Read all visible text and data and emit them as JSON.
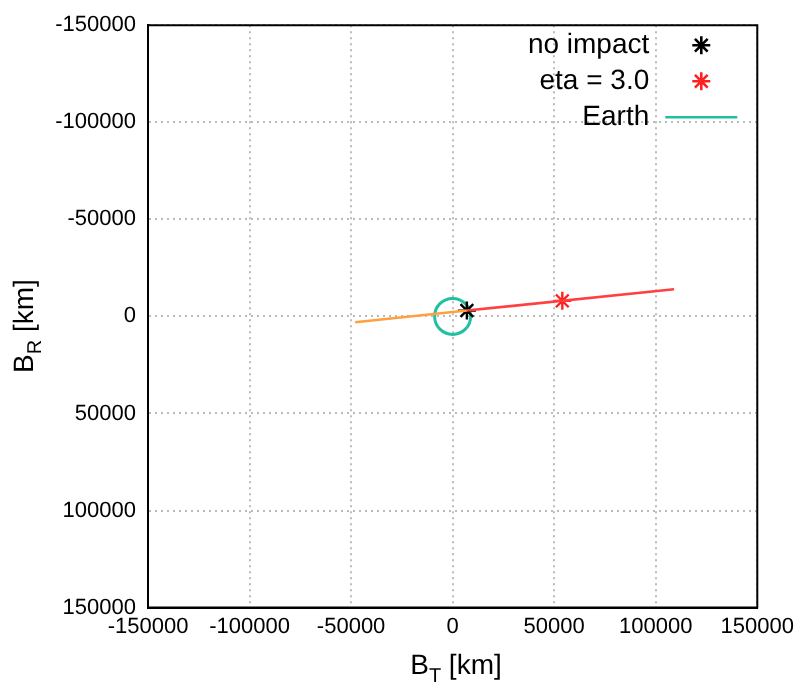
{
  "chart_data": {
    "type": "scatter",
    "xlabel": "B$_{T}$ [km]",
    "ylabel": "B$_{R}$ [km]",
    "xlim": [
      -150000,
      150000
    ],
    "xticks": [
      -150000,
      -100000,
      -50000,
      0,
      50000,
      100000,
      150000
    ],
    "ylim": [
      150000,
      -150000
    ],
    "yticks": [
      -150000,
      -100000,
      -50000,
      0,
      50000,
      100000,
      150000
    ],
    "grid": true,
    "legend": "top right",
    "series": [
      {
        "type": "line",
        "color": "#ffa040",
        "marker": "none",
        "x": [
          -48000,
          7000
        ],
        "values": [
          3000,
          -3000
        ]
      },
      {
        "type": "line",
        "color": "#ff4040",
        "marker": "none",
        "x": [
          7000,
          109000
        ],
        "values": [
          -3000,
          -14000
        ]
      },
      {
        "name": "no impact",
        "color": "#000000",
        "marker": "cross",
        "x": [
          7000
        ],
        "values": [
          -3000
        ]
      },
      {
        "name": "eta = 3.0",
        "color": "#ff2020",
        "marker": "cross",
        "x": [
          54000
        ],
        "values": [
          -8000
        ]
      },
      {
        "name": "Earth",
        "color": "#20c0a0",
        "marker": "circle",
        "line_style": "solid",
        "x": [
          0
        ],
        "values": [
          0
        ]
      }
    ]
  }
}
